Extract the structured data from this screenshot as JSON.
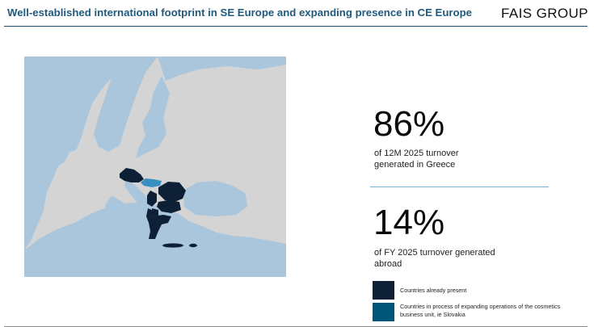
{
  "header": {
    "title": "Well-established international footprint in SE Europe and expanding presence in CE Europe",
    "logo_text": "FAIS GROUP"
  },
  "stats": [
    {
      "value": "86%",
      "description_line1": "of 12M 2025 turnover",
      "description_line2": "generated in Greece"
    },
    {
      "value": "14%",
      "description_line1": "of FY 2025 turnover generated",
      "description_line2": "abroad"
    }
  ],
  "legend": [
    {
      "label": "Countries already present",
      "color": "#0d2036"
    },
    {
      "label_line1": "Countries in process of expanding operations of the cosmetics",
      "label_line2": "business unit, ie Slovakia",
      "color": "#005679"
    }
  ],
  "colors": {
    "title": "#1f5a7c",
    "sea": "#aac6dc",
    "land": "#d4d4d4",
    "present": "#0d2036",
    "expanding": "#3b8ec0",
    "divider": "#7fb0cc"
  }
}
